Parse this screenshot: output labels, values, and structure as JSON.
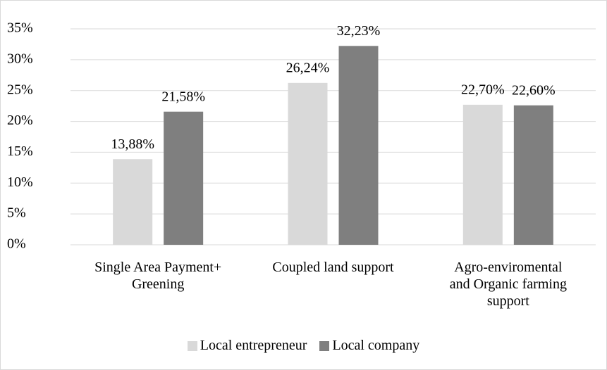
{
  "chart_data": {
    "type": "bar",
    "categories": [
      "Single Area Payment+\nGreening",
      "Coupled land support",
      "Agro-enviromental\nand Organic farming\nsupport"
    ],
    "series": [
      {
        "name": "Local entrepreneur",
        "color": "#d9d9d9",
        "values": [
          13.88,
          26.24,
          22.7
        ],
        "value_labels": [
          "13,88%",
          "26,24%",
          "22,70%"
        ]
      },
      {
        "name": "Local company",
        "color": "#7f7f7f",
        "values": [
          21.58,
          32.23,
          22.6
        ],
        "value_labels": [
          "21,58%",
          "32,23%",
          "22,60%"
        ]
      }
    ],
    "ylim": [
      0,
      35
    ],
    "yticks": [
      {
        "value": 0,
        "label": "0%"
      },
      {
        "value": 5,
        "label": "5%"
      },
      {
        "value": 10,
        "label": "10%"
      },
      {
        "value": 15,
        "label": "15%"
      },
      {
        "value": 20,
        "label": "20%"
      },
      {
        "value": 25,
        "label": "25%"
      },
      {
        "value": 30,
        "label": "30%"
      },
      {
        "value": 35,
        "label": "35%"
      }
    ],
    "grid": true,
    "legend": "bottom"
  }
}
